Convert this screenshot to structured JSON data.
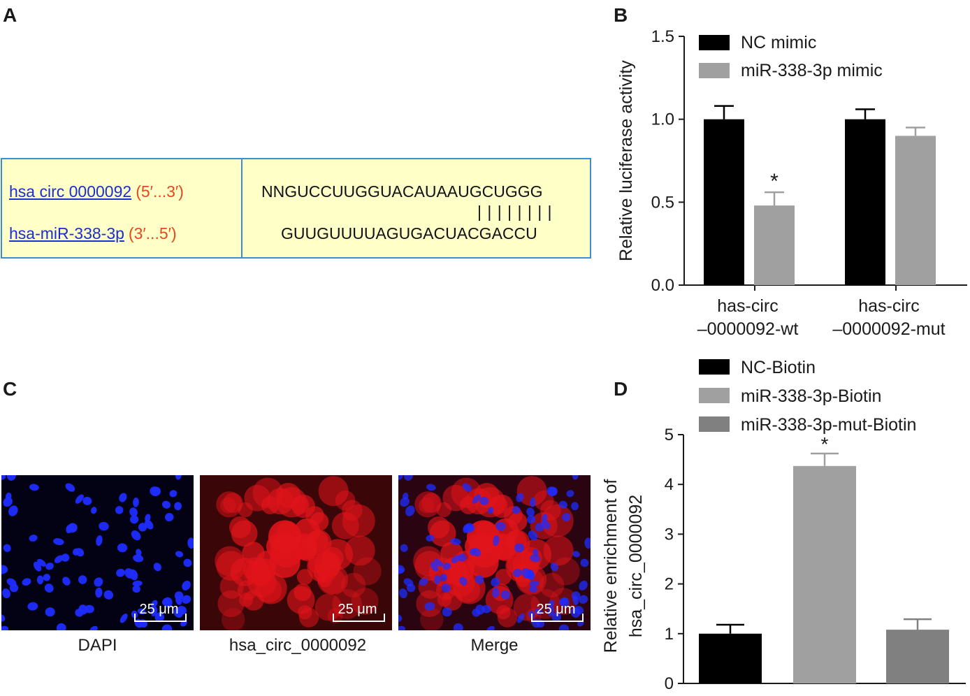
{
  "panels": {
    "a": "A",
    "b": "B",
    "c": "C",
    "d": "D"
  },
  "panel_a": {
    "row1": {
      "name": "hsa circ 0000092",
      "dir": "(5′...3′)",
      "seq": "NNGUCCUUGGUACAUAAUGCUGGG"
    },
    "pairing": "| | | | | | | |",
    "row2": {
      "name": "hsa-miR-338-3p",
      "dir": "(3′...5′)",
      "seq": "GUUGUUUUAGUGACUACGACCU"
    },
    "colors": {
      "box_fill": "#ffffc8",
      "box_border": "#3a8fd0",
      "name": "#1a2fcc",
      "direction": "#e8461f"
    }
  },
  "panel_c": {
    "images": [
      {
        "caption": "DAPI",
        "scale": "25 μm",
        "stain": "blue nuclei"
      },
      {
        "caption": "hsa_circ_0000092",
        "scale": "25 μm",
        "stain": "red cytoplasm"
      },
      {
        "caption": "Merge",
        "scale": "25 μm",
        "stain": "overlay"
      }
    ]
  },
  "chart_data": [
    {
      "type": "bar",
      "panel": "B",
      "ylabel": "Relative luciferase activity",
      "xlabel": "",
      "ylim": [
        0,
        1.5
      ],
      "yticks": [
        "0.0",
        "0.5",
        "1.0",
        "1.5"
      ],
      "categories": [
        [
          "has-circ",
          "–0000092-wt"
        ],
        [
          "has-circ",
          "–0000092-mut"
        ]
      ],
      "series": [
        {
          "name": "NC mimic",
          "color": "#000000",
          "values": [
            1.0,
            1.0
          ],
          "errors": [
            0.08,
            0.06
          ]
        },
        {
          "name": "miR-338-3p mimic",
          "color": "#a0a0a0",
          "values": [
            0.48,
            0.9
          ],
          "errors": [
            0.08,
            0.05
          ]
        }
      ],
      "significance": [
        {
          "category": 0,
          "series": 1,
          "label": "*"
        }
      ],
      "legend": "top-left",
      "grid": false
    },
    {
      "type": "bar",
      "panel": "D",
      "ylabel": [
        "Relative enrichment of",
        "hsa_circ_0000092"
      ],
      "xlabel": "",
      "ylim": [
        0,
        5
      ],
      "yticks": [
        "0",
        "1",
        "2",
        "3",
        "4",
        "5"
      ],
      "series": [
        {
          "name": "NC-Biotin",
          "color": "#000000",
          "value": 1.0,
          "error": 0.18
        },
        {
          "name": "miR-338-3p-Biotin",
          "color": "#a0a0a0",
          "value": 4.37,
          "error": 0.25
        },
        {
          "name": "miR-338-3p-mut-Biotin",
          "color": "#808080",
          "value": 1.08,
          "error": 0.21
        }
      ],
      "significance": [
        {
          "series": 1,
          "label": "*"
        }
      ],
      "legend": "top-left",
      "grid": false
    }
  ]
}
